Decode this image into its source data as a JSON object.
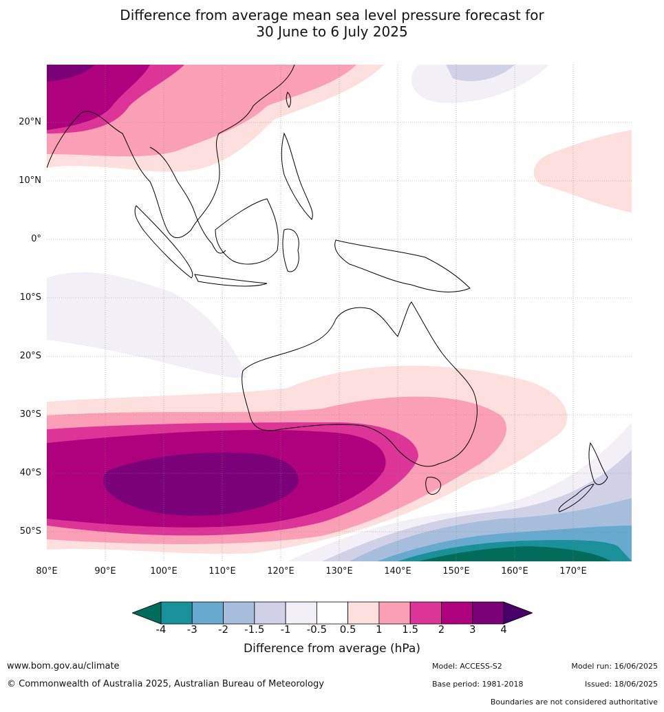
{
  "title_line1": "Difference from average mean sea level pressure forecast for",
  "title_line2": "30 June to 6 July 2025",
  "lat_labels": [
    "20°N",
    "10°N",
    "0°",
    "10°S",
    "20°S",
    "30°S",
    "40°S",
    "50°S"
  ],
  "lon_labels": [
    "80°E",
    "90°E",
    "100°E",
    "110°E",
    "120°E",
    "130°E",
    "140°E",
    "150°E",
    "160°E",
    "170°E"
  ],
  "colorbar": {
    "ticks": [
      "-4",
      "-3",
      "-2",
      "-1.5",
      "-1",
      "-0.5",
      "0.5",
      "1",
      "1.5",
      "2",
      "3",
      "4"
    ],
    "colors": [
      "#1a9099",
      "#67a9cf",
      "#a6bddb",
      "#d0d1e6",
      "#f2eff6",
      "#ffffff",
      "#fde0dd",
      "#fa9fb5",
      "#dd3497",
      "#ae017e",
      "#7a0177"
    ],
    "low_extend_color": "#016c59",
    "high_extend_color": "#49006a",
    "title": "Difference from average (hPa)"
  },
  "footer": {
    "website": "www.bom.gov.au/climate",
    "copyright": "© Commonwealth of Australia 2025, Australian Bureau of Meteorology",
    "model": "Model: ACCESS-S2",
    "base_period": "Base period: 1981-2018",
    "model_run": "Model run: 16/06/2025",
    "issued": "Issued: 18/06/2025",
    "disclaimer": "Boundaries are not considered authoritative"
  }
}
